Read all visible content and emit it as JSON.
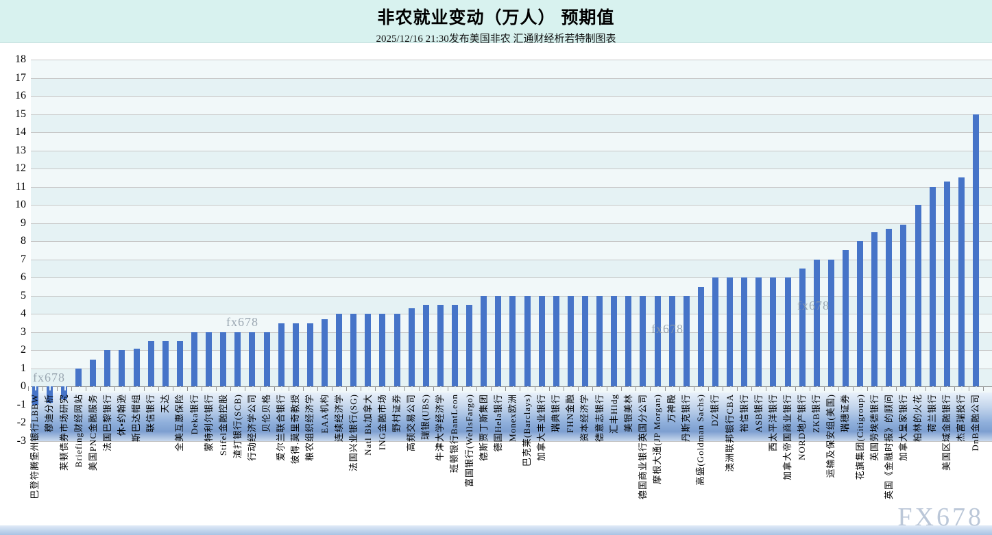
{
  "title": "非农就业变动（万人） 预期值",
  "subtitle": "2025/12/16 21:30发布美国非农 汇通财经析若特制图表",
  "watermark": {
    "small": "fx678",
    "large": "FX678"
  },
  "colors": {
    "bar": "#4674c8",
    "header_bg": "#d8f2ef",
    "plot_row_light": "#f1f8f9",
    "plot_row_dark": "#e5f2f4",
    "gridline": "#c6c6c6",
    "zero_axis": "#8c8c8c",
    "tick": "#909090",
    "tick_on_bar": "#e8f2f4",
    "label_band_mid": "#8fafdb",
    "watermark_small": "#8d9aa6",
    "watermark_large": "#b4c2d4"
  },
  "chart_data": {
    "type": "bar",
    "title": "非农就业变动（万人） 预期值",
    "subtitle": "2025/12/16 21:30发布美国非农 汇通财经析若特制图表",
    "xlabel": "",
    "ylabel": "",
    "ylim": [
      -3,
      18
    ],
    "ytick_step": 1,
    "grid": true,
    "legend": false,
    "categories": [
      "巴登符腾堡州银行LBBW",
      "穆迪分析",
      "莱顿债券市场研究",
      "Briefing财经网站",
      "美国PNC金融服务",
      "法国巴黎银行",
      "休•约翰逊",
      "斯巴达帽组",
      "联信银行",
      "天达",
      "全美互惠保险",
      "Deka银行",
      "蒙特利尔银行",
      "Stifel金融控股",
      "渣打银行(SCB)",
      "行动经济学公司",
      "贝伦贝格",
      "爱尔兰联合银行",
      "彼得.莫里奇教授",
      "粮农组织经济学",
      "EAA机构",
      "连续经济学",
      "法国兴业银行(SG)",
      "Natl Bk加拿大",
      "ING金融市场",
      "野村证券",
      "高频交易公司",
      "瑞银(UBS)",
      "牛津大学经济学",
      "班顿银行BantLeon",
      "富国银行(WellsFargo)",
      "德斯贾丁斯集团",
      "德国Hela银行",
      "Monex欧洲",
      "巴克莱(Barclays)",
      "加拿大丰业银行",
      "瑞典银行",
      "FHN金融",
      "资本经济学",
      "德意志银行",
      "汇丰Hldg",
      "美银美林",
      "德国商业银行英国分公司",
      "摩根大通(JP Morgan)",
      "万神殿",
      "丹斯克银行",
      "高盛(Goldman Sachs)",
      "DZ银行",
      "澳洲联邦银行CBA",
      "裕信银行",
      "ASB银行",
      "西太平洋银行",
      "加拿大帝国商业银行",
      "NORD地产银行",
      "ZKB银行",
      "运输及保安组(美国)",
      "瑞穗证券",
      "花旗集团(Citigroup)",
      "英国劳埃德银行",
      "英国《金融时报》的顾问",
      "加拿大皇家银行",
      "柏林的火花",
      "荷兰银行",
      "美国区域金融银行",
      "杰富瑞投行",
      "DnB金融公司"
    ],
    "values": [
      -1.0,
      -0.9,
      -0.7,
      1.0,
      1.5,
      2.0,
      2.0,
      2.1,
      2.5,
      2.5,
      2.5,
      3.0,
      3.0,
      3.0,
      3.0,
      3.0,
      3.0,
      3.5,
      3.5,
      3.5,
      3.7,
      4.0,
      4.0,
      4.0,
      4.0,
      4.0,
      4.3,
      4.5,
      4.5,
      4.5,
      4.5,
      5.0,
      5.0,
      5.0,
      5.0,
      5.0,
      5.0,
      5.0,
      5.0,
      5.0,
      5.0,
      5.0,
      5.0,
      5.0,
      5.0,
      5.0,
      5.5,
      6.0,
      6.0,
      6.0,
      6.0,
      6.0,
      6.0,
      6.5,
      7.0,
      7.0,
      7.5,
      8.0,
      8.5,
      8.7,
      8.9,
      10.0,
      11.0,
      11.3,
      11.5,
      15.0
    ]
  }
}
